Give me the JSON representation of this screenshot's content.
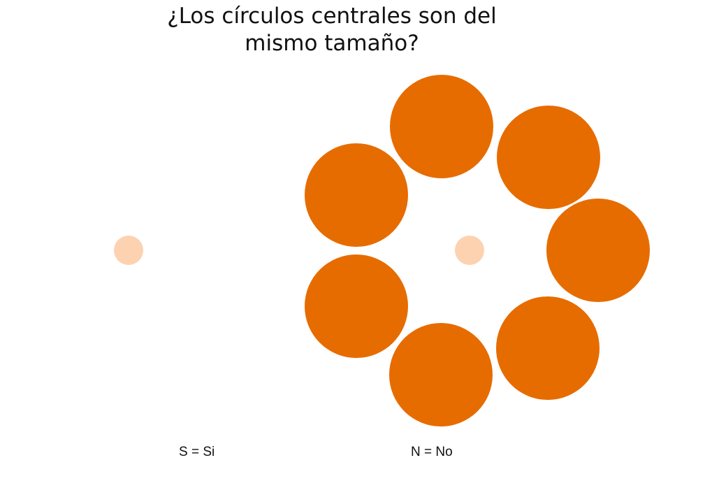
{
  "question": {
    "line1": "¿Los círculos centrales son del",
    "line2": "mismo tamaño?"
  },
  "answers": {
    "yes": "S = Si",
    "no": "N = No"
  },
  "colors": {
    "outer_circle": "#e66c00",
    "center_circle": "#fdd2b0",
    "background": "#ffffff"
  }
}
